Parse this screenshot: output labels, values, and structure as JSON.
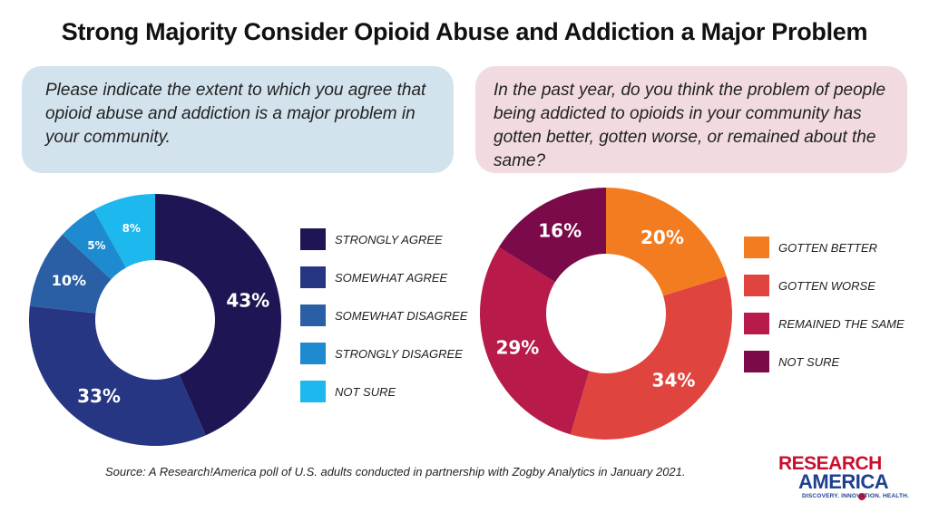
{
  "title": "Strong Majority Consider Opioid Abuse and Addiction a Major Problem",
  "source": "Source: A Research!America poll of U.S. adults conducted in partnership with Zogby Analytics in January 2021.",
  "logo": {
    "line1": "RESEARCH",
    "line2": "AMERICA",
    "tagline": "DISCOVERY. INNOVATION. HEALTH."
  },
  "colors": {
    "left_box": "#d2e3ee",
    "right_box": "#f1dbe0"
  },
  "chart_data": [
    {
      "type": "pie",
      "donut": true,
      "question": "Please indicate the extent to which you agree that opioid abuse and addiction is a major problem in your community.",
      "categories": [
        "STRONGLY AGREE",
        "SOMEWHAT AGREE",
        "SOMEWHAT DISAGREE",
        "STRONGLY DISAGREE",
        "NOT SURE"
      ],
      "values": [
        43,
        33,
        10,
        5,
        8
      ],
      "labels": [
        "43%",
        "33%",
        "10%",
        "5%",
        "8%"
      ],
      "colors": [
        "#1e1654",
        "#263682",
        "#2a5fa6",
        "#1e8ad0",
        "#1cb8ee"
      ],
      "legend": "right"
    },
    {
      "type": "pie",
      "donut": true,
      "question": "In the past year, do you think the problem of people being addicted to opioids in your community has gotten better, gotten worse, or remained about the same?",
      "categories": [
        "GOTTEN BETTER",
        "GOTTEN WORSE",
        "REMAINED THE SAME",
        "NOT SURE"
      ],
      "values": [
        20,
        34,
        29,
        16
      ],
      "labels": [
        "20%",
        "34%",
        "29%",
        "16%"
      ],
      "colors": [
        "#f47c20",
        "#e0443e",
        "#b81a4a",
        "#7a0a4a"
      ],
      "legend": "right"
    }
  ]
}
